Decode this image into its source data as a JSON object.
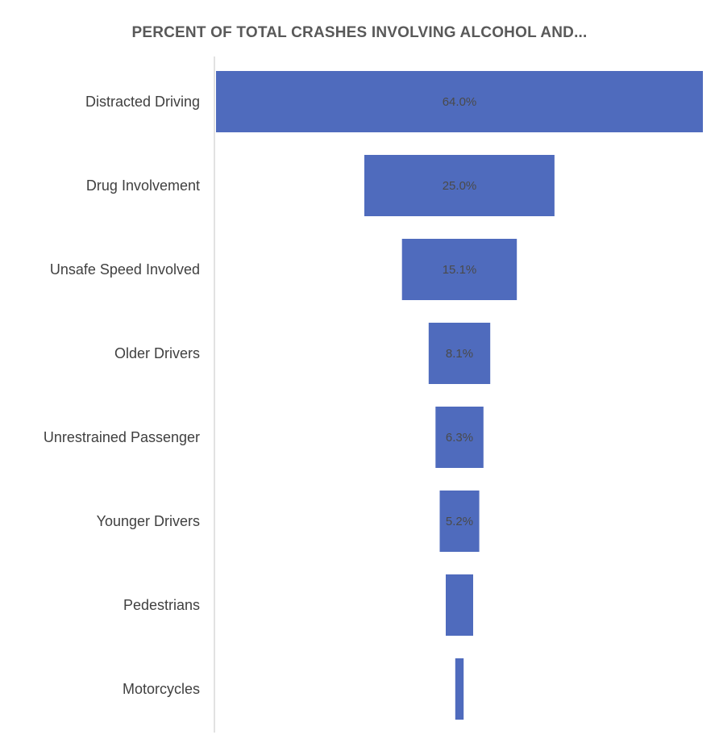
{
  "chart_data": {
    "type": "bar",
    "orientation": "horizontal",
    "style": "funnel",
    "title": "PERCENT OF TOTAL CRASHES INVOLVING ALCOHOL AND...",
    "xlabel": "",
    "ylabel": "",
    "categories": [
      "Distracted Driving",
      "Drug Involvement",
      "Unsafe Speed Involved",
      "Older Drivers",
      "Unrestrained Passenger",
      "Younger Drivers",
      "Pedestrians",
      "Motorcycles"
    ],
    "values": [
      64.0,
      25.0,
      15.1,
      8.1,
      6.3,
      5.2,
      3.6,
      1.1
    ],
    "data_labels": [
      "64.0%",
      "25.0%",
      "15.1%",
      "8.1%",
      "6.3%",
      "5.2%",
      "",
      ""
    ],
    "xlim": [
      0,
      64
    ],
    "grid": false,
    "legend": "none",
    "colors": {
      "bar": "#4f6bbd",
      "axis": "#d9d9d9",
      "title": "#595959",
      "label": "#404040"
    }
  }
}
